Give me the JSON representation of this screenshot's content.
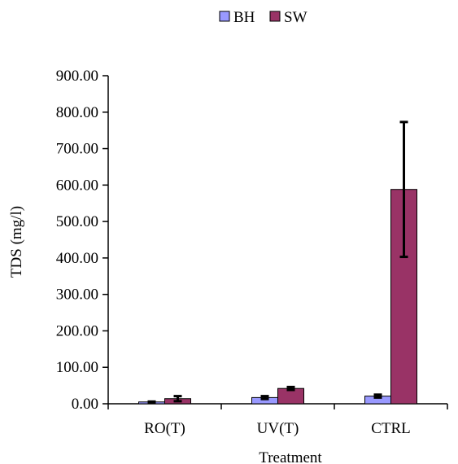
{
  "chart_data": {
    "type": "bar",
    "categories": [
      "RO(T)",
      "UV(T)",
      "CTRL"
    ],
    "series": [
      {
        "name": "BH",
        "color": "#9999ff",
        "values": [
          5,
          17,
          21
        ],
        "errors": [
          1,
          4,
          4
        ]
      },
      {
        "name": "SW",
        "color": "#993366",
        "values": [
          14,
          42,
          588
        ],
        "errors": [
          7,
          4,
          185
        ]
      }
    ],
    "title": "",
    "xlabel": "Treatment",
    "ylabel": "TDS (mg/l)",
    "ylim": [
      0,
      900
    ],
    "yticks": [
      "0.00",
      "100.00",
      "200.00",
      "300.00",
      "400.00",
      "500.00",
      "600.00",
      "700.00",
      "800.00",
      "900.00"
    ],
    "ytick_values": [
      0,
      100,
      200,
      300,
      400,
      500,
      600,
      700,
      800,
      900
    ],
    "grid": false,
    "legend_position": "top-center"
  }
}
